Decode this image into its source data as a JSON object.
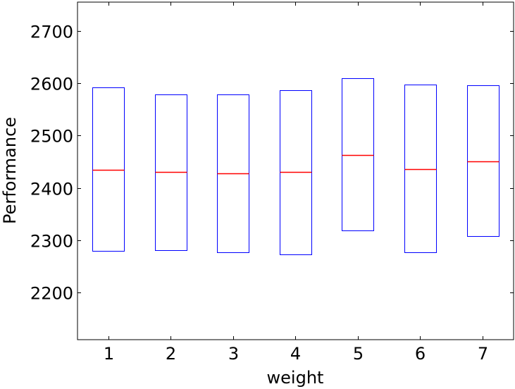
{
  "chart_data": {
    "type": "box",
    "xlabel": "weight",
    "ylabel": "Performance",
    "ylim": [
      2110,
      2755
    ],
    "y_ticks": [
      2200,
      2300,
      2400,
      2500,
      2600,
      2700
    ],
    "categories": [
      "1",
      "2",
      "3",
      "4",
      "5",
      "6",
      "7"
    ],
    "boxes": [
      {
        "category": "1",
        "q1": 2279,
        "median": 2435,
        "q3": 2592
      },
      {
        "category": "2",
        "q1": 2281,
        "median": 2430,
        "q3": 2579
      },
      {
        "category": "3",
        "q1": 2277,
        "median": 2428,
        "q3": 2579
      },
      {
        "category": "4",
        "q1": 2273,
        "median": 2430,
        "q3": 2587
      },
      {
        "category": "5",
        "q1": 2319,
        "median": 2463,
        "q3": 2609
      },
      {
        "category": "6",
        "q1": 2277,
        "median": 2436,
        "q3": 2598
      },
      {
        "category": "7",
        "q1": 2308,
        "median": 2451,
        "q3": 2596
      }
    ],
    "grid": false,
    "colors": {
      "box": "#0000ff",
      "median": "#ff0000",
      "axes": "#000000"
    }
  }
}
